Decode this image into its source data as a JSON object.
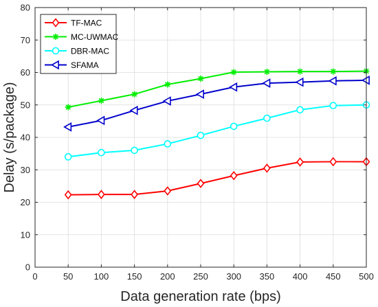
{
  "chart_data": {
    "type": "line",
    "xlabel": "Data generation rate (bps)",
    "ylabel": "Delay (s/package)",
    "xlim": [
      0,
      500
    ],
    "ylim": [
      0,
      80
    ],
    "xticks": [
      0,
      50,
      100,
      150,
      200,
      250,
      300,
      350,
      400,
      450,
      500
    ],
    "yticks": [
      0,
      10,
      20,
      30,
      40,
      50,
      60,
      70,
      80
    ],
    "grid": true,
    "legend_position": "top-left",
    "x": [
      50,
      100,
      150,
      200,
      250,
      300,
      350,
      400,
      450,
      500
    ],
    "series": [
      {
        "name": "TF-MAC",
        "color": "#ff0000",
        "marker": "diamond",
        "values": [
          22.3,
          22.4,
          22.4,
          23.5,
          25.8,
          28.2,
          30.5,
          32.4,
          32.5,
          32.5
        ]
      },
      {
        "name": "MC-UWMAC",
        "color": "#00ee00",
        "marker": "asterisk",
        "values": [
          49.3,
          51.3,
          53.3,
          56.3,
          58.1,
          60.1,
          60.2,
          60.3,
          60.3,
          60.4
        ]
      },
      {
        "name": "DBR-MAC",
        "color": "#00ffff",
        "marker": "circle",
        "values": [
          34.0,
          35.3,
          36.0,
          38.0,
          40.6,
          43.4,
          45.9,
          48.5,
          49.8,
          50.0
        ]
      },
      {
        "name": "SFAMA",
        "color": "#0000cc",
        "marker": "triangle-left",
        "values": [
          43.2,
          45.2,
          48.3,
          51.2,
          53.3,
          55.5,
          56.7,
          57.0,
          57.4,
          57.6
        ]
      }
    ]
  }
}
